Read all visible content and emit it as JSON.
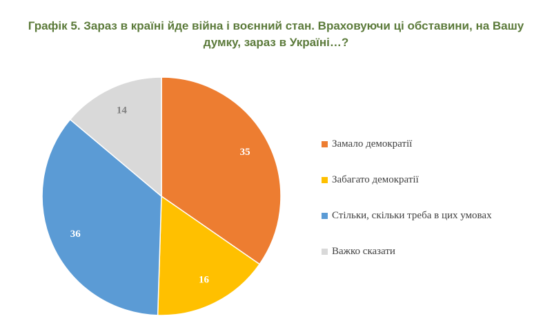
{
  "chart_data": {
    "type": "pie",
    "title": "Графік 5. Зараз в країні йде війна і воєнний стан. Враховуючи ці обставини, на Вашу думку, зараз в Україні…?",
    "categories": [
      "Замало демократії",
      "Забагато демократії",
      "Стільки, скільки треба в цих умовах",
      "Важко сказати"
    ],
    "values": [
      35,
      16,
      36,
      14
    ],
    "colors": [
      "#ED7D31",
      "#FFC000",
      "#5B9BD5",
      "#D9D9D9"
    ],
    "label_colors": [
      "#ffffff",
      "#ffffff",
      "#ffffff",
      "#7f7f7f"
    ],
    "legend_position": "right"
  }
}
